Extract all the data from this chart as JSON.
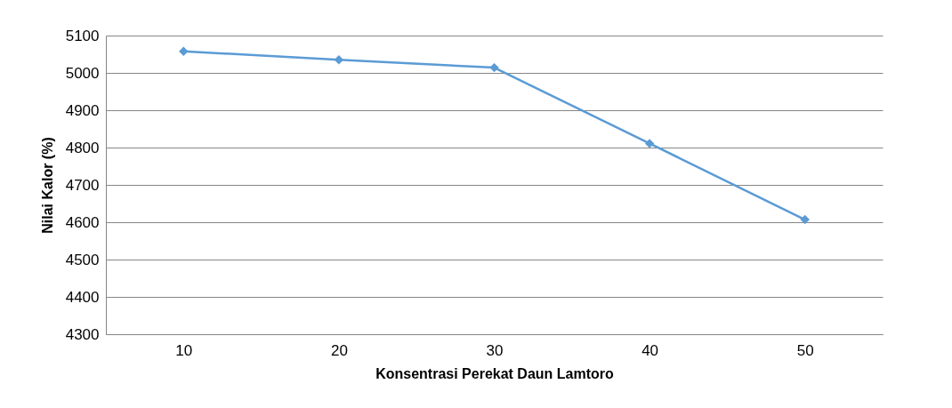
{
  "chart_data": {
    "type": "line",
    "xlabel": "Konsentrasi Perekat Daun Lamtoro",
    "ylabel": "Nilai Kalor (%)",
    "categories": [
      "10",
      "20",
      "30",
      "40",
      "50"
    ],
    "series": [
      {
        "color": "#5b9bd5",
        "values": [
          5058,
          5035,
          5014,
          4811,
          4607
        ]
      }
    ],
    "ylim": [
      4300,
      5100
    ],
    "yticks": [
      4300,
      4400,
      4500,
      4600,
      4700,
      4800,
      4900,
      5000,
      5100
    ],
    "grid": "y",
    "marker": "diamond",
    "line_style": "solid"
  }
}
